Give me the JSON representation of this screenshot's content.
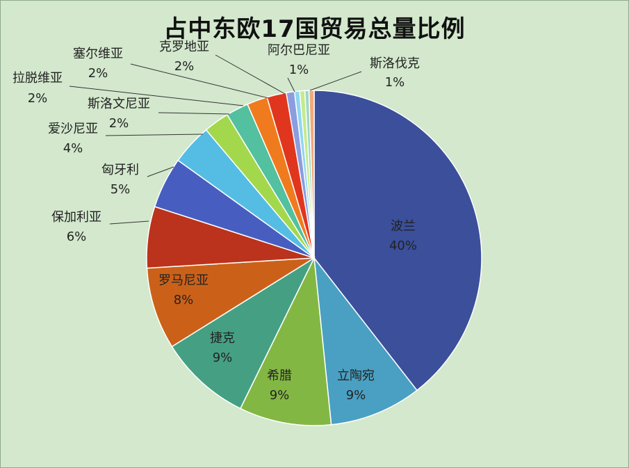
{
  "chart_data": {
    "type": "pie",
    "title": "占中东欧17国贸易总量比例",
    "slices": [
      {
        "name": "波兰",
        "value": 40,
        "label": "40%",
        "color": "#3b4f9b"
      },
      {
        "name": "立陶宛",
        "value": 9,
        "label": "9%",
        "color": "#4aa0c2"
      },
      {
        "name": "希腊",
        "value": 9,
        "label": "9%",
        "color": "#83b744"
      },
      {
        "name": "捷克",
        "value": 9,
        "label": "9%",
        "color": "#45a083"
      },
      {
        "name": "罗马尼亚",
        "value": 8,
        "label": "8%",
        "color": "#cb6119"
      },
      {
        "name": "保加利亚",
        "value": 6,
        "label": "6%",
        "color": "#bb331c"
      },
      {
        "name": "匈牙利",
        "value": 5,
        "label": "5%",
        "color": "#475ec0"
      },
      {
        "name": "爱沙尼亚",
        "value": 4,
        "label": "4%",
        "color": "#55bde4"
      },
      {
        "name": "斯洛文尼亚",
        "value": 2.5,
        "label": "2%",
        "color": "#a3d84c"
      },
      {
        "name": "拉脱维亚",
        "value": 2.2,
        "label": "2%",
        "color": "#53c0a0"
      },
      {
        "name": "塞尔维亚",
        "value": 2.0,
        "label": "2%",
        "color": "#f07b1e"
      },
      {
        "name": "克罗地亚",
        "value": 1.9,
        "label": "2%",
        "color": "#e0361e"
      },
      {
        "name": "阿尔巴尼亚",
        "value": 0.8,
        "label": "1%",
        "color": "#8b9ddf"
      },
      {
        "name": "",
        "value": 0.5,
        "label": "",
        "color": "#8fd6f2"
      },
      {
        "name": "",
        "value": 0.5,
        "label": "",
        "color": "#c6ea8d"
      },
      {
        "name": "",
        "value": 0.4,
        "label": "",
        "color": "#9ad9c6"
      },
      {
        "name": "斯洛伐克",
        "value": 0.5,
        "label": "1%",
        "color": "#f4a77b"
      }
    ]
  }
}
